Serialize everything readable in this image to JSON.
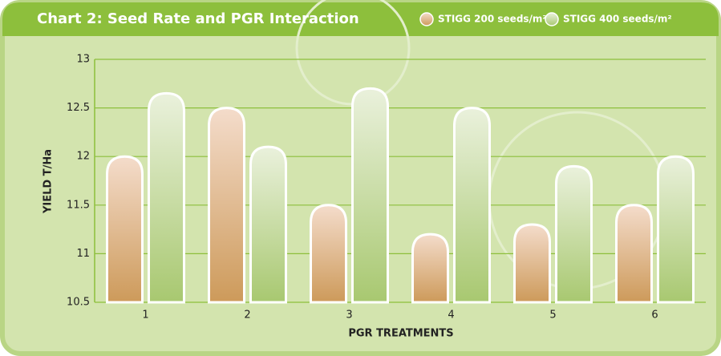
{
  "chart_data": {
    "type": "bar",
    "title": "Chart 2: Seed Rate and PGR Interaction",
    "x_label": "PGR TREATMENTS",
    "y_label": "YIELD T/Ha",
    "categories": [
      "1",
      "2",
      "3",
      "4",
      "5",
      "6"
    ],
    "series": [
      {
        "name": "STIGG 200 seeds/m²",
        "color": "#cd9a5a",
        "values": [
          12.0,
          12.5,
          11.5,
          11.2,
          11.3,
          11.5
        ]
      },
      {
        "name": "STIGG 400 seeds/m²",
        "color": "#a8c870",
        "values": [
          12.65,
          12.1,
          12.7,
          12.5,
          11.9,
          12.0
        ]
      }
    ],
    "ylim": [
      10.5,
      13
    ],
    "yticks": [
      10.5,
      11,
      11.5,
      12,
      12.5,
      13
    ],
    "grid": true
  }
}
